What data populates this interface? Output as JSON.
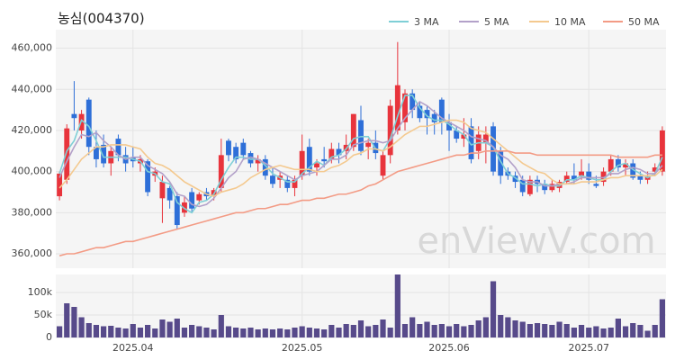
{
  "chart_data": {
    "type": "candlestick",
    "title": "농심(004370)",
    "watermark": "enViewV.com",
    "categories": [
      null,
      null,
      null,
      null,
      null,
      null,
      null,
      null,
      null,
      null,
      "2025.04",
      null,
      null,
      null,
      null,
      null,
      null,
      null,
      null,
      null,
      null,
      null,
      null,
      null,
      null,
      null,
      null,
      null,
      null,
      null,
      null,
      null,
      null,
      "2025.05",
      null,
      null,
      null,
      null,
      null,
      null,
      null,
      null,
      null,
      null,
      null,
      null,
      null,
      null,
      null,
      null,
      null,
      null,
      null,
      "2025.06",
      null,
      null,
      null,
      null,
      null,
      null,
      null,
      null,
      null,
      null,
      null,
      null,
      null,
      null,
      null,
      null,
      null,
      null,
      "2025.07",
      null,
      null,
      null,
      null,
      null,
      null,
      null,
      null,
      null,
      null
    ],
    "open": [
      388000,
      396000,
      428000,
      420000,
      435000,
      412000,
      413000,
      404000,
      416000,
      408000,
      407000,
      404000,
      405000,
      398000,
      387000,
      392000,
      388000,
      380000,
      390000,
      386000,
      390000,
      388000,
      392000,
      415000,
      412000,
      414000,
      409000,
      404000,
      406000,
      398000,
      396000,
      396000,
      392000,
      398000,
      412000,
      402000,
      406000,
      406000,
      411000,
      410000,
      412000,
      425000,
      412000,
      414000,
      398000,
      408000,
      420000,
      424000,
      438000,
      432000,
      430000,
      428000,
      435000,
      424000,
      420000,
      416000,
      422000,
      410000,
      414000,
      422000,
      410000,
      400000,
      398000,
      396000,
      389000,
      396000,
      394000,
      391000,
      392000,
      395000,
      398000,
      398000,
      400000,
      394000,
      395000,
      400000,
      406000,
      402000,
      404000,
      398000,
      396000,
      400000,
      400000
    ],
    "high": [
      400000,
      423000,
      444000,
      430000,
      436000,
      420000,
      418000,
      412000,
      418000,
      412000,
      412000,
      408000,
      406000,
      402000,
      398000,
      393000,
      390000,
      388000,
      392000,
      390000,
      392000,
      392000,
      416000,
      416000,
      414000,
      416000,
      410000,
      408000,
      408000,
      402000,
      400000,
      398000,
      398000,
      418000,
      416000,
      406000,
      412000,
      414000,
      414000,
      418000,
      428000,
      432000,
      416000,
      420000,
      410000,
      435000,
      463000,
      440000,
      440000,
      434000,
      432000,
      430000,
      436000,
      428000,
      422000,
      426000,
      426000,
      422000,
      422000,
      424000,
      412000,
      402000,
      400000,
      398000,
      398000,
      398000,
      396000,
      396000,
      396000,
      400000,
      404000,
      406000,
      404000,
      398000,
      402000,
      408000,
      408000,
      406000,
      406000,
      400000,
      400000,
      404000,
      422000
    ],
    "low": [
      386000,
      394000,
      420000,
      416000,
      408000,
      402000,
      402000,
      398000,
      405000,
      400000,
      402000,
      400000,
      388000,
      395000,
      375000,
      382000,
      372000,
      378000,
      380000,
      384000,
      386000,
      386000,
      390000,
      405000,
      404000,
      406000,
      402000,
      400000,
      396000,
      392000,
      392000,
      390000,
      388000,
      396000,
      398000,
      398000,
      402000,
      404000,
      404000,
      406000,
      410000,
      408000,
      406000,
      406000,
      396000,
      404000,
      418000,
      420000,
      426000,
      424000,
      418000,
      418000,
      418000,
      410000,
      414000,
      412000,
      404000,
      406000,
      404000,
      398000,
      394000,
      396000,
      392000,
      388000,
      388000,
      390000,
      389000,
      390000,
      390000,
      394000,
      394000,
      396000,
      394000,
      392000,
      393000,
      398000,
      400000,
      398000,
      396000,
      394000,
      394000,
      398000,
      398000
    ],
    "close": [
      399000,
      421000,
      426000,
      428000,
      412000,
      406000,
      404000,
      410000,
      408000,
      404000,
      405000,
      406000,
      390000,
      400000,
      395000,
      386000,
      374000,
      385000,
      382000,
      389000,
      388000,
      391000,
      408000,
      408000,
      406000,
      408000,
      404000,
      406000,
      398000,
      394000,
      398000,
      392000,
      396000,
      410000,
      400000,
      404000,
      405000,
      411000,
      408000,
      413000,
      428000,
      410000,
      414000,
      409000,
      408000,
      432000,
      442000,
      438000,
      430000,
      426000,
      426000,
      424000,
      424000,
      420000,
      416000,
      418000,
      406000,
      418000,
      418000,
      400000,
      398000,
      398000,
      395000,
      390000,
      396000,
      394000,
      391000,
      394000,
      395000,
      398000,
      396000,
      400000,
      396000,
      393000,
      400000,
      406000,
      402000,
      404000,
      397000,
      396000,
      398000,
      402000,
      420000
    ],
    "volume": [
      25000,
      76000,
      68000,
      45000,
      32000,
      28000,
      25000,
      26000,
      22000,
      20000,
      30000,
      22000,
      28000,
      20000,
      40000,
      35000,
      42000,
      22000,
      28000,
      25000,
      22000,
      18000,
      50000,
      25000,
      22000,
      20000,
      22000,
      18000,
      20000,
      18000,
      20000,
      18000,
      22000,
      25000,
      22000,
      20000,
      18000,
      28000,
      22000,
      30000,
      28000,
      38000,
      25000,
      28000,
      40000,
      22000,
      140000,
      30000,
      45000,
      30000,
      35000,
      28000,
      30000,
      25000,
      30000,
      25000,
      28000,
      38000,
      45000,
      125000,
      50000,
      45000,
      38000,
      35000,
      30000,
      32000,
      30000,
      28000,
      35000,
      30000,
      22000,
      28000,
      22000,
      25000,
      20000,
      22000,
      42000,
      25000,
      32000,
      28000,
      15000,
      28000,
      85000
    ],
    "up_color": "#e8343c",
    "down_color": "#2e6fd8",
    "volume_color": "#574a8a",
    "series": [
      {
        "name": "3 MA",
        "color": "#7fcfd6",
        "values": [
          399000,
          410000,
          415000,
          425000,
          422000,
          415000,
          407000,
          407000,
          407000,
          407000,
          406000,
          405000,
          400000,
          399000,
          395000,
          394000,
          385000,
          382000,
          380000,
          385000,
          386000,
          389000,
          396000,
          402000,
          407000,
          407000,
          406000,
          406000,
          403000,
          399000,
          397000,
          395000,
          395000,
          399000,
          402000,
          405000,
          403000,
          407000,
          408000,
          411000,
          416000,
          417000,
          417000,
          411000,
          410000,
          416000,
          427000,
          437000,
          437000,
          431000,
          427000,
          425000,
          425000,
          423000,
          420000,
          418000,
          413000,
          414000,
          414000,
          412000,
          405000,
          399000,
          397000,
          394000,
          394000,
          393000,
          394000,
          393000,
          393000,
          396000,
          396000,
          398000,
          397000,
          396000,
          396000,
          400000,
          403000,
          404000,
          401000,
          399000,
          397000,
          399000,
          407000
        ]
      },
      {
        "name": "5 MA",
        "color": "#b3a1c9",
        "values": [
          397000,
          405000,
          412000,
          418000,
          417000,
          419000,
          415000,
          412000,
          408000,
          406000,
          407000,
          407000,
          403000,
          401000,
          399000,
          395000,
          389000,
          388000,
          384000,
          383000,
          384000,
          387000,
          392000,
          397000,
          400000,
          406000,
          407000,
          406000,
          404000,
          402000,
          400000,
          398000,
          396000,
          398000,
          399000,
          400000,
          403000,
          406000,
          406000,
          408000,
          413000,
          414000,
          415000,
          415000,
          414000,
          415000,
          421000,
          426000,
          430000,
          434000,
          432000,
          429000,
          426000,
          424000,
          422000,
          420000,
          417000,
          416000,
          415000,
          412000,
          408000,
          406000,
          402000,
          396000,
          395000,
          395000,
          393000,
          393000,
          394000,
          394000,
          395000,
          397000,
          397000,
          397000,
          397000,
          399000,
          399000,
          401000,
          402000,
          401000,
          399000,
          399000,
          403000
        ]
      },
      {
        "name": "10 MA",
        "color": "#f4c98f",
        "values": [
          392000,
          396000,
          401000,
          406000,
          409000,
          412000,
          412000,
          413000,
          413000,
          413000,
          412000,
          411000,
          407000,
          404000,
          403000,
          401000,
          398000,
          395000,
          393000,
          391000,
          389000,
          388000,
          390000,
          391000,
          392000,
          394000,
          397000,
          399000,
          401000,
          402000,
          403000,
          402000,
          401000,
          401000,
          401000,
          400000,
          400000,
          402000,
          403000,
          405000,
          408000,
          409000,
          411000,
          411000,
          410000,
          412000,
          415000,
          418000,
          420000,
          422000,
          422000,
          423000,
          424000,
          425000,
          425000,
          424000,
          421000,
          420000,
          419000,
          416000,
          413000,
          410000,
          407000,
          404000,
          402000,
          400000,
          399000,
          396000,
          394000,
          394000,
          394000,
          395000,
          395000,
          395000,
          396000,
          397000,
          397000,
          398000,
          398000,
          398000,
          398000,
          398000,
          401000
        ]
      },
      {
        "name": "50 MA",
        "color": "#f39b85",
        "values": [
          359000,
          360000,
          360000,
          361000,
          362000,
          363000,
          363000,
          364000,
          365000,
          366000,
          366000,
          367000,
          368000,
          369000,
          370000,
          371000,
          372000,
          373000,
          374000,
          375000,
          376000,
          377000,
          378000,
          379000,
          380000,
          380000,
          381000,
          382000,
          382000,
          383000,
          384000,
          384000,
          385000,
          386000,
          386000,
          387000,
          387000,
          388000,
          389000,
          389000,
          390000,
          391000,
          393000,
          394000,
          396000,
          398000,
          400000,
          401000,
          402000,
          403000,
          404000,
          405000,
          406000,
          407000,
          408000,
          408000,
          409000,
          409000,
          410000,
          410000,
          410000,
          410000,
          409000,
          409000,
          409000,
          408000,
          408000,
          408000,
          408000,
          408000,
          408000,
          408000,
          408000,
          408000,
          408000,
          408000,
          407000,
          407000,
          407000,
          407000,
          407000,
          408000,
          408000
        ]
      }
    ],
    "ylim": [
      353000,
      469000
    ],
    "yticks": [
      {
        "value": 360000,
        "label": "360,000"
      },
      {
        "value": 380000,
        "label": "380,000"
      },
      {
        "value": 400000,
        "label": "400,000"
      },
      {
        "value": 420000,
        "label": "420,000"
      },
      {
        "value": 440000,
        "label": "440,000"
      },
      {
        "value": 460000,
        "label": "460,000"
      }
    ],
    "volume_ylim": [
      0,
      140000
    ],
    "volume_yticks": [
      0,
      {
        "value": 50000,
        "label": "50k"
      },
      {
        "value": 100000,
        "label": "100k"
      }
    ],
    "grid": true
  }
}
